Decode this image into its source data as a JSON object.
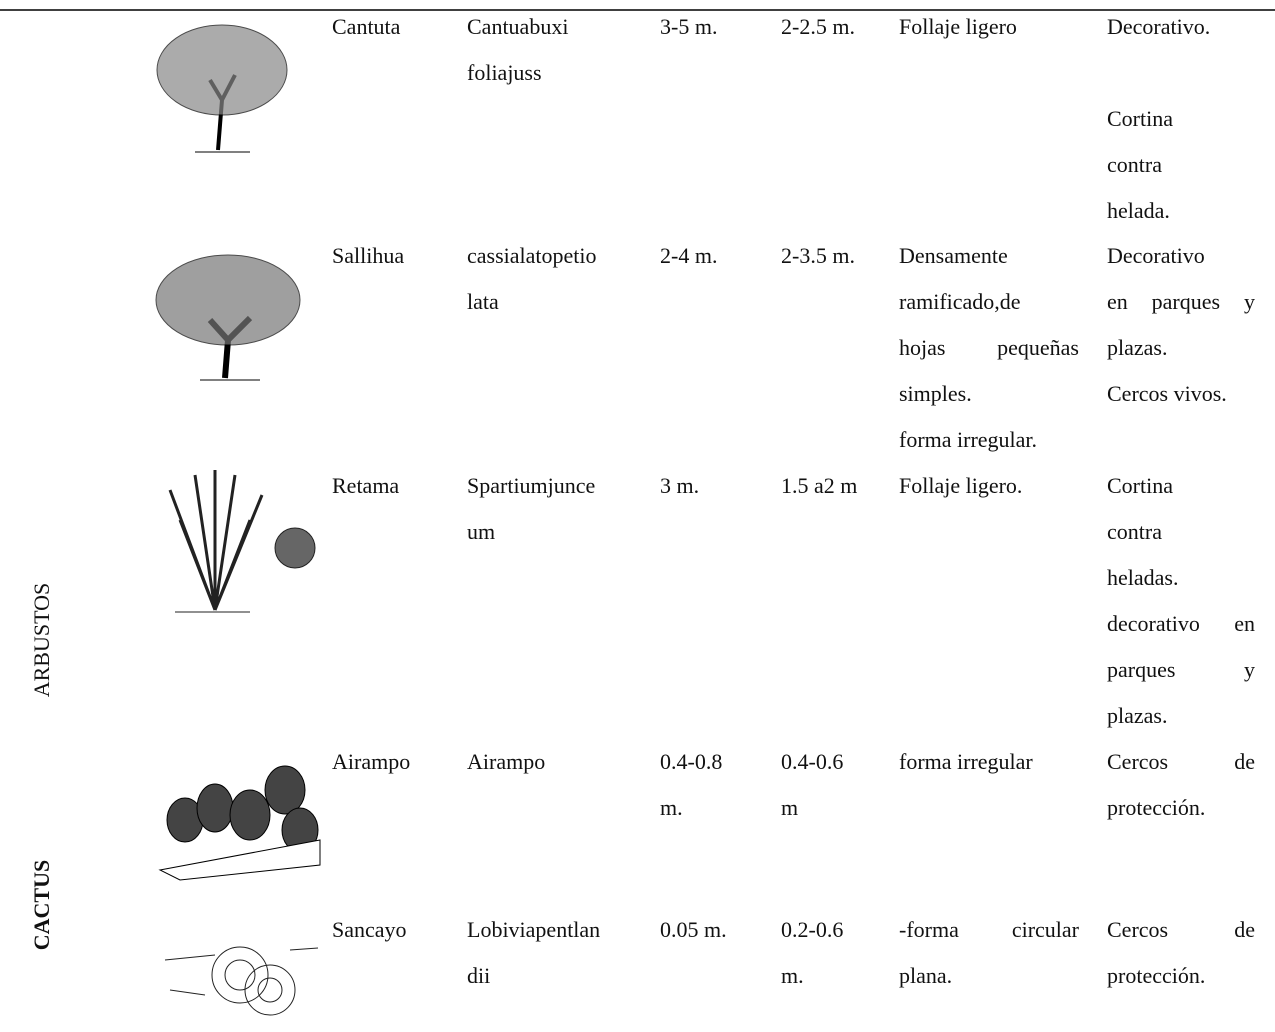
{
  "groups": [
    "ARBUSTOS",
    "CACTUS"
  ],
  "rows": [
    {
      "name": [
        "Cantuta"
      ],
      "scientific": [
        "Cantuabuxi",
        "foliajuss"
      ],
      "height": [
        "3-5 m."
      ],
      "diameter": [
        "2-2.5 m."
      ],
      "features": [
        [
          "Follaje ligero"
        ]
      ],
      "use": [
        [
          "Decorativo."
        ],
        [
          "Cortina",
          "contra",
          "helada."
        ]
      ]
    },
    {
      "name": [
        "Sallihua"
      ],
      "scientific": [
        "cassialatopetio",
        "lata"
      ],
      "height": [
        "2-4 m."
      ],
      "diameter": [
        "2-3.5 m."
      ],
      "features": [
        [
          "Densamente",
          "ramificado,de",
          "hojas pequeñas",
          "simples."
        ],
        [
          "forma irregular."
        ]
      ],
      "use": [
        [
          "Decorativo",
          "en parques y",
          "plazas."
        ],
        [
          "Cercos vivos."
        ]
      ]
    },
    {
      "name": [
        "Retama"
      ],
      "scientific": [
        "Spartiumjunce",
        "um"
      ],
      "height": [
        "3 m."
      ],
      "diameter": [
        "1.5 a2 m"
      ],
      "features": [
        [
          "Follaje ligero."
        ]
      ],
      "use": [
        [
          "Cortina",
          "contra",
          "heladas."
        ],
        [
          "decorativo en",
          "parques y",
          "plazas."
        ]
      ]
    },
    {
      "name": [
        "Airampo"
      ],
      "scientific": [
        "Airampo"
      ],
      "height": [
        "0.4-0.8",
        "m."
      ],
      "diameter": [
        "0.4-0.6",
        "m"
      ],
      "features": [
        [
          "forma irregular"
        ]
      ],
      "use": [
        [
          "Cercos de",
          "protección."
        ]
      ]
    },
    {
      "name": [
        "Sancayo"
      ],
      "scientific": [
        "Lobiviapentlan",
        "dii"
      ],
      "height": [
        "0.05 m."
      ],
      "diameter": [
        "0.2-0.6",
        "m."
      ],
      "features": [
        [
          "-forma circular",
          "plana."
        ]
      ],
      "use": [
        [
          "Cercos de",
          "protección."
        ]
      ]
    }
  ]
}
